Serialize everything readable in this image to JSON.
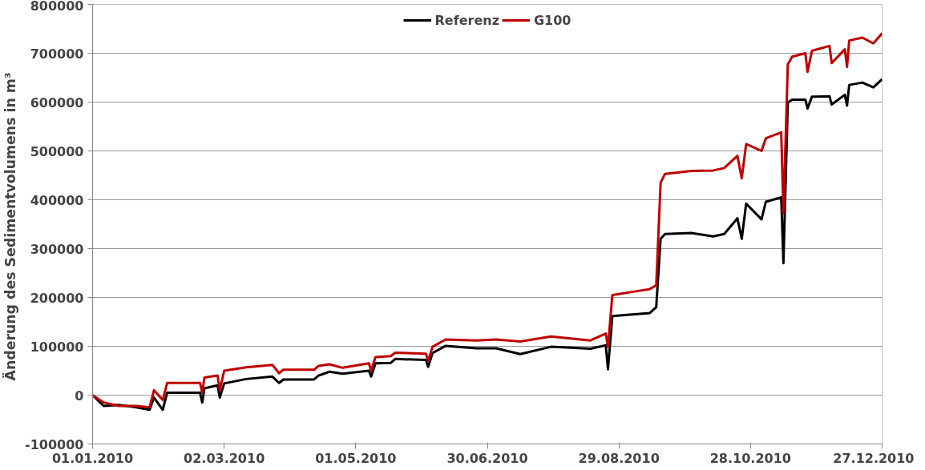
{
  "chart_data": {
    "type": "line",
    "ylabel": "Änderung des Sedimentvolumens  in m³",
    "x": [
      "2010-01-01",
      "2010-01-06",
      "2010-01-13",
      "2010-01-21",
      "2010-01-27",
      "2010-01-29",
      "2010-02-02",
      "2010-02-04",
      "2010-02-19",
      "2010-02-20",
      "2010-02-21",
      "2010-02-27",
      "2010-02-28",
      "2010-03-02",
      "2010-03-12",
      "2010-03-24",
      "2010-03-27",
      "2010-03-29",
      "2010-04-12",
      "2010-04-14",
      "2010-04-19",
      "2010-04-25",
      "2010-05-07",
      "2010-05-08",
      "2010-05-10",
      "2010-05-17",
      "2010-05-19",
      "2010-06-02",
      "2010-06-03",
      "2010-06-05",
      "2010-06-11",
      "2010-06-25",
      "2010-07-04",
      "2010-07-15",
      "2010-07-29",
      "2010-08-16",
      "2010-08-23",
      "2010-08-24",
      "2010-08-26",
      "2010-09-12",
      "2010-09-15",
      "2010-09-17",
      "2010-09-19",
      "2010-10-01",
      "2010-10-11",
      "2010-10-16",
      "2010-10-22",
      "2010-10-24",
      "2010-10-26",
      "2010-11-02",
      "2010-11-04",
      "2010-11-11",
      "2010-11-12",
      "2010-11-14",
      "2010-11-16",
      "2010-11-22",
      "2010-11-23",
      "2010-11-25",
      "2010-12-03",
      "2010-12-04",
      "2010-12-10",
      "2010-12-11",
      "2010-12-12",
      "2010-12-18",
      "2010-12-23",
      "2010-12-27"
    ],
    "series": [
      {
        "name": "Referenz",
        "color": "#000000",
        "values": [
          0,
          -22000,
          -20000,
          -25000,
          -30000,
          -5000,
          -30000,
          5000,
          5000,
          -15000,
          14000,
          20000,
          -5000,
          24000,
          33000,
          38000,
          25000,
          32000,
          32000,
          40000,
          48000,
          44000,
          50000,
          38000,
          65000,
          66000,
          74000,
          72000,
          58000,
          86000,
          101000,
          96000,
          96000,
          84000,
          99000,
          95000,
          102000,
          53000,
          162000,
          168000,
          180000,
          320000,
          330000,
          332000,
          325000,
          330000,
          362000,
          320000,
          392000,
          360000,
          396000,
          405000,
          270000,
          599000,
          605000,
          605000,
          587000,
          611000,
          612000,
          595000,
          615000,
          593000,
          635000,
          640000,
          630000,
          647000
        ]
      },
      {
        "name": "G100",
        "color": "#c00000",
        "values": [
          0,
          -15000,
          -22000,
          -22000,
          -25000,
          10000,
          -10000,
          25000,
          25000,
          5000,
          36000,
          40000,
          10000,
          50000,
          57000,
          62000,
          45000,
          52000,
          52000,
          60000,
          63000,
          56000,
          65000,
          50000,
          78000,
          80000,
          87000,
          85000,
          70000,
          99000,
          114000,
          112000,
          114000,
          110000,
          120000,
          112000,
          126000,
          99000,
          205000,
          217000,
          225000,
          435000,
          453000,
          459000,
          460000,
          465000,
          490000,
          444000,
          514000,
          500000,
          526000,
          538000,
          372000,
          677000,
          693000,
          700000,
          662000,
          705000,
          715000,
          680000,
          708000,
          672000,
          726000,
          732000,
          720000,
          741000
        ]
      }
    ],
    "xlim": [
      "2010-01-01",
      "2010-12-27"
    ],
    "xticks": [
      {
        "value": "2010-01-01",
        "label": "01.01.2010"
      },
      {
        "value": "2010-03-02",
        "label": "02.03.2010"
      },
      {
        "value": "2010-05-01",
        "label": "01.05.2010"
      },
      {
        "value": "2010-06-30",
        "label": "30.06.2010"
      },
      {
        "value": "2010-08-29",
        "label": "29.08.2010"
      },
      {
        "value": "2010-10-28",
        "label": "28.10.2010"
      },
      {
        "value": "2010-12-27",
        "label": "27.12.2010"
      }
    ],
    "ylim": [
      -100000,
      800000
    ],
    "yticks": [
      -100000,
      0,
      100000,
      200000,
      300000,
      400000,
      500000,
      600000,
      700000,
      800000
    ],
    "grid": "y",
    "legend": "top",
    "marker": "none",
    "line_style": "solid"
  }
}
